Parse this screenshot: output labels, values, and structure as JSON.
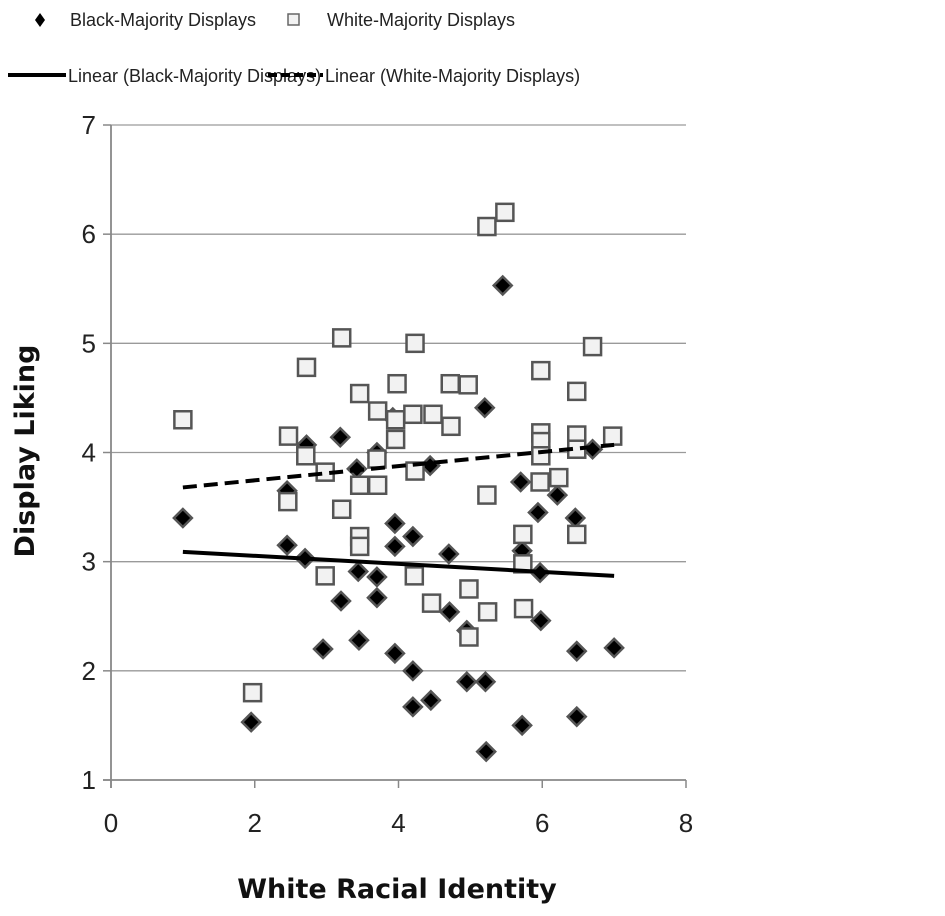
{
  "chart_data": {
    "type": "scatter",
    "title": "",
    "xlabel": "White Racial Identity",
    "ylabel": "Display Liking",
    "xlim": [
      0,
      8
    ],
    "ylim": [
      1,
      7
    ],
    "xticks": [
      0,
      2,
      4,
      6,
      8
    ],
    "yticks": [
      1,
      2,
      3,
      4,
      5,
      6,
      7
    ],
    "grid": {
      "horizontal": true,
      "vertical": false
    },
    "legend_position": "top",
    "legend": [
      {
        "label": "Black-Majority Displays",
        "marker": "diamond-filled",
        "color": "#000000"
      },
      {
        "label": "White-Majority Displays",
        "marker": "square-open",
        "color": "#555555"
      },
      {
        "label": "Linear (Black-Majority Displays)",
        "line": "solid",
        "color": "#000000"
      },
      {
        "label": "Linear (White-Majority Displays)",
        "line": "dashed",
        "color": "#000000"
      }
    ],
    "series": [
      {
        "name": "Black-Majority Displays",
        "marker": "diamond",
        "points": [
          [
            1.0,
            3.4
          ],
          [
            1.95,
            1.53
          ],
          [
            2.45,
            3.65
          ],
          [
            2.45,
            3.15
          ],
          [
            2.72,
            4.07
          ],
          [
            2.7,
            3.03
          ],
          [
            2.95,
            2.2
          ],
          [
            3.19,
            4.14
          ],
          [
            3.2,
            2.64
          ],
          [
            3.42,
            3.85
          ],
          [
            3.44,
            2.91
          ],
          [
            3.45,
            2.28
          ],
          [
            3.7,
            4.0
          ],
          [
            3.7,
            2.86
          ],
          [
            3.7,
            2.67
          ],
          [
            3.92,
            4.32
          ],
          [
            3.95,
            3.35
          ],
          [
            3.95,
            3.14
          ],
          [
            3.95,
            2.16
          ],
          [
            4.2,
            3.23
          ],
          [
            4.2,
            2.0
          ],
          [
            4.2,
            1.67
          ],
          [
            4.44,
            3.88
          ],
          [
            4.45,
            1.73
          ],
          [
            4.7,
            3.07
          ],
          [
            4.71,
            2.54
          ],
          [
            4.95,
            2.37
          ],
          [
            4.95,
            1.9
          ],
          [
            5.2,
            4.41
          ],
          [
            5.21,
            1.9
          ],
          [
            5.22,
            1.26
          ],
          [
            5.45,
            5.53
          ],
          [
            5.7,
            3.73
          ],
          [
            5.72,
            3.1
          ],
          [
            5.72,
            1.5
          ],
          [
            5.94,
            3.45
          ],
          [
            5.97,
            2.9
          ],
          [
            5.98,
            2.46
          ],
          [
            6.21,
            3.61
          ],
          [
            6.46,
            3.4
          ],
          [
            6.48,
            2.18
          ],
          [
            6.48,
            1.58
          ],
          [
            6.7,
            4.03
          ],
          [
            7.0,
            2.21
          ]
        ]
      },
      {
        "name": "White-Majority Displays",
        "marker": "square",
        "points": [
          [
            1.0,
            4.3
          ],
          [
            1.97,
            1.8
          ],
          [
            2.47,
            4.15
          ],
          [
            2.46,
            3.55
          ],
          [
            2.72,
            4.78
          ],
          [
            2.71,
            3.97
          ],
          [
            2.98,
            3.82
          ],
          [
            2.98,
            2.87
          ],
          [
            3.21,
            5.05
          ],
          [
            3.21,
            3.48
          ],
          [
            3.46,
            4.54
          ],
          [
            3.46,
            3.7
          ],
          [
            3.46,
            3.23
          ],
          [
            3.46,
            3.14
          ],
          [
            3.71,
            4.38
          ],
          [
            3.7,
            3.94
          ],
          [
            3.71,
            3.7
          ],
          [
            3.98,
            4.63
          ],
          [
            3.96,
            4.3
          ],
          [
            3.96,
            4.12
          ],
          [
            4.23,
            5.0
          ],
          [
            4.2,
            4.35
          ],
          [
            4.23,
            3.83
          ],
          [
            4.22,
            2.87
          ],
          [
            4.48,
            4.35
          ],
          [
            4.46,
            2.62
          ],
          [
            4.72,
            4.63
          ],
          [
            4.73,
            4.24
          ],
          [
            4.97,
            4.62
          ],
          [
            4.98,
            2.75
          ],
          [
            4.98,
            2.31
          ],
          [
            5.23,
            6.07
          ],
          [
            5.23,
            3.61
          ],
          [
            5.24,
            2.54
          ],
          [
            5.48,
            6.2
          ],
          [
            5.73,
            3.25
          ],
          [
            5.73,
            2.98
          ],
          [
            5.74,
            2.57
          ],
          [
            5.98,
            4.75
          ],
          [
            5.98,
            4.18
          ],
          [
            5.98,
            4.1
          ],
          [
            5.98,
            3.97
          ],
          [
            5.97,
            3.73
          ],
          [
            6.23,
            3.77
          ],
          [
            6.48,
            4.56
          ],
          [
            6.48,
            4.16
          ],
          [
            6.48,
            4.03
          ],
          [
            6.48,
            3.25
          ],
          [
            6.7,
            4.97
          ],
          [
            6.98,
            4.15
          ]
        ]
      }
    ],
    "trendlines": [
      {
        "name": "Linear (Black-Majority Displays)",
        "style": "solid",
        "x": [
          1,
          7
        ],
        "y": [
          3.09,
          2.87
        ]
      },
      {
        "name": "Linear (White-Majority Displays)",
        "style": "dashed",
        "x": [
          1,
          7
        ],
        "y": [
          3.68,
          4.07
        ]
      }
    ]
  }
}
